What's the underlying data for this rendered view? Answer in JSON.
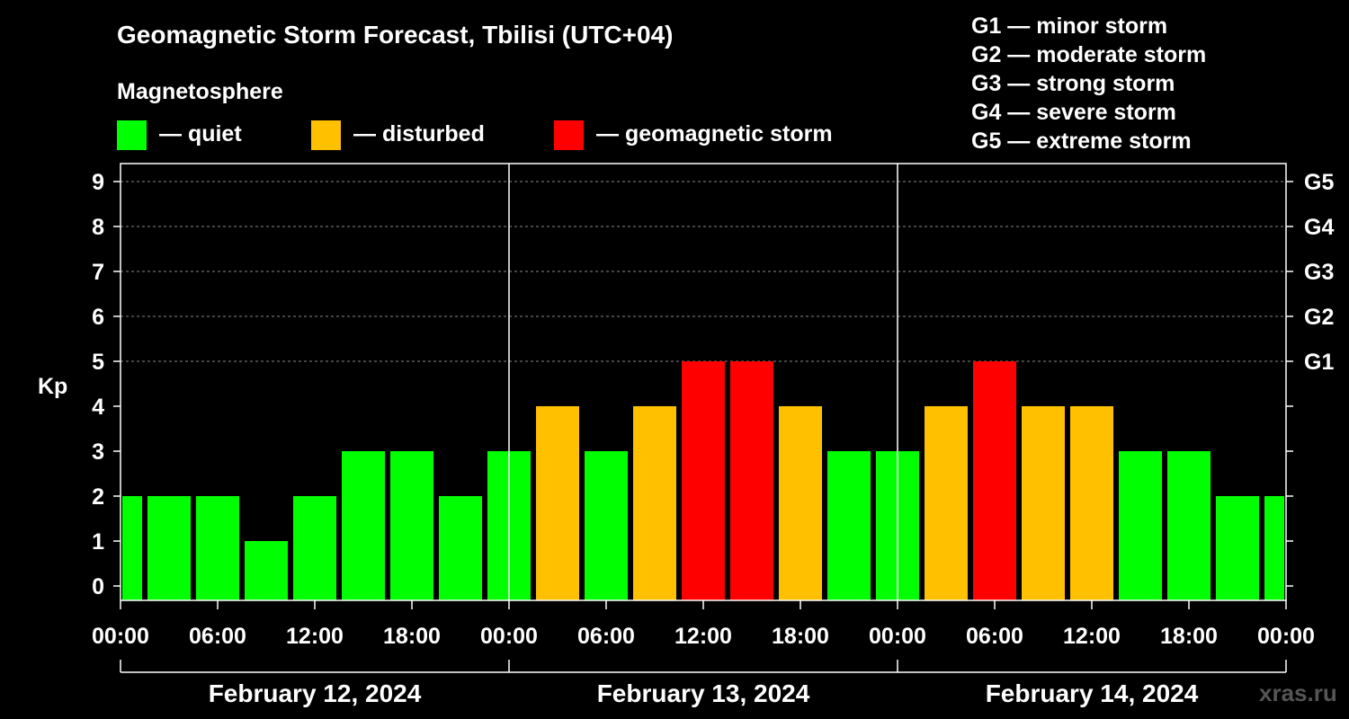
{
  "title": "Geomagnetic Storm Forecast, Tbilisi (UTC+04)",
  "legend": {
    "heading": "Magnetosphere",
    "items": [
      {
        "label": "— quiet",
        "color": "#00ff00"
      },
      {
        "label": "— disturbed",
        "color": "#ffc000"
      },
      {
        "label": "— geomagnetic storm",
        "color": "#ff0000"
      }
    ]
  },
  "storm_scale": [
    "G1 — minor storm",
    "G2 — moderate storm",
    "G3 — strong storm",
    "G4 — severe storm",
    "G5 — extreme storm"
  ],
  "watermark": "xras.ru",
  "chart_data": {
    "type": "bar",
    "ylabel": "Kp",
    "ylim": [
      0,
      9
    ],
    "yticks": [
      "0",
      "1",
      "2",
      "3",
      "4",
      "5",
      "6",
      "7",
      "8",
      "9"
    ],
    "g_labels": [
      {
        "kp": 5,
        "label": "G1"
      },
      {
        "kp": 6,
        "label": "G2"
      },
      {
        "kp": 7,
        "label": "G3"
      },
      {
        "kp": 8,
        "label": "G4"
      },
      {
        "kp": 9,
        "label": "G5"
      }
    ],
    "x_tick_labels": [
      "00:00",
      "06:00",
      "12:00",
      "18:00",
      "00:00",
      "06:00",
      "12:00",
      "18:00",
      "00:00",
      "06:00",
      "12:00",
      "18:00",
      "00:00"
    ],
    "dates": [
      "February 12, 2024",
      "February 13, 2024",
      "February 14, 2024"
    ],
    "categories": [
      "Feb 12 00:00",
      "Feb 12 03:00",
      "Feb 12 06:00",
      "Feb 12 09:00",
      "Feb 12 12:00",
      "Feb 12 15:00",
      "Feb 12 18:00",
      "Feb 12 21:00",
      "Feb 13 00:00",
      "Feb 13 03:00",
      "Feb 13 06:00",
      "Feb 13 09:00",
      "Feb 13 12:00",
      "Feb 13 15:00",
      "Feb 13 18:00",
      "Feb 13 21:00",
      "Feb 14 00:00",
      "Feb 14 03:00",
      "Feb 14 06:00",
      "Feb 14 09:00",
      "Feb 14 12:00",
      "Feb 14 15:00",
      "Feb 14 18:00",
      "Feb 14 21:00",
      "Feb 15 00:00"
    ],
    "values": [
      2,
      2,
      2,
      1,
      2,
      3,
      3,
      2,
      3,
      4,
      3,
      4,
      5,
      5,
      4,
      3,
      3,
      4,
      5,
      4,
      4,
      3,
      3,
      2,
      2
    ],
    "thresholds": {
      "quiet_max": 3,
      "disturbed_max": 4
    },
    "grid": true,
    "legend_position": "top"
  }
}
